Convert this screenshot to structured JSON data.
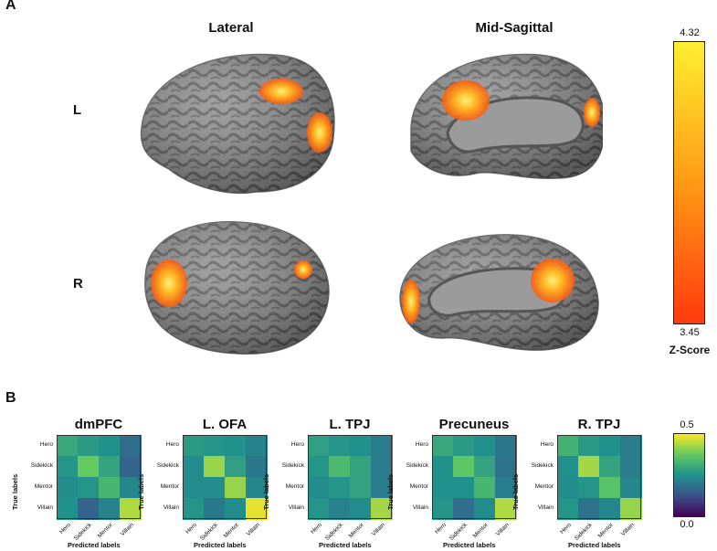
{
  "panel_a": {
    "letter": "A",
    "views": [
      "Lateral",
      "Mid-Sagittal"
    ],
    "hemispheres": [
      "L",
      "R"
    ],
    "colorbar": {
      "max_label": "4.32",
      "min_label": "3.45",
      "title": "Z-Score",
      "colors": [
        "#ffef30",
        "#ff9a14",
        "#ff3a0e"
      ]
    }
  },
  "panel_b": {
    "letter": "B",
    "colorbar": {
      "max_label": "0.5",
      "min_label": "0.0"
    },
    "x_axis_label": "Predicted labels",
    "y_axis_label": "True labels",
    "chart_data": {
      "type": "heatmap",
      "categories": [
        "Hero",
        "Sidekick",
        "Mentor",
        "Villain"
      ],
      "value_range": [
        0.0,
        0.5
      ],
      "matrices": [
        {
          "name": "dmPFC",
          "values": [
            [
              0.3,
              0.27,
              0.25,
              0.18
            ],
            [
              0.26,
              0.38,
              0.29,
              0.16
            ],
            [
              0.24,
              0.26,
              0.33,
              0.23
            ],
            [
              0.25,
              0.16,
              0.22,
              0.44
            ]
          ]
        },
        {
          "name": "L. OFA",
          "values": [
            [
              0.27,
              0.26,
              0.25,
              0.22
            ],
            [
              0.24,
              0.42,
              0.28,
              0.2
            ],
            [
              0.24,
              0.24,
              0.42,
              0.23
            ],
            [
              0.26,
              0.2,
              0.24,
              0.48
            ]
          ]
        },
        {
          "name": "L. TPJ",
          "values": [
            [
              0.28,
              0.26,
              0.25,
              0.21
            ],
            [
              0.26,
              0.34,
              0.29,
              0.21
            ],
            [
              0.24,
              0.26,
              0.29,
              0.21
            ],
            [
              0.26,
              0.22,
              0.24,
              0.43
            ]
          ]
        },
        {
          "name": "Precuneus",
          "values": [
            [
              0.3,
              0.27,
              0.25,
              0.2
            ],
            [
              0.25,
              0.37,
              0.29,
              0.19
            ],
            [
              0.25,
              0.25,
              0.33,
              0.21
            ],
            [
              0.26,
              0.18,
              0.24,
              0.44
            ]
          ]
        },
        {
          "name": "R. TPJ",
          "values": [
            [
              0.32,
              0.27,
              0.25,
              0.21
            ],
            [
              0.25,
              0.43,
              0.29,
              0.21
            ],
            [
              0.24,
              0.26,
              0.36,
              0.23
            ],
            [
              0.26,
              0.19,
              0.23,
              0.42
            ]
          ]
        }
      ]
    }
  }
}
